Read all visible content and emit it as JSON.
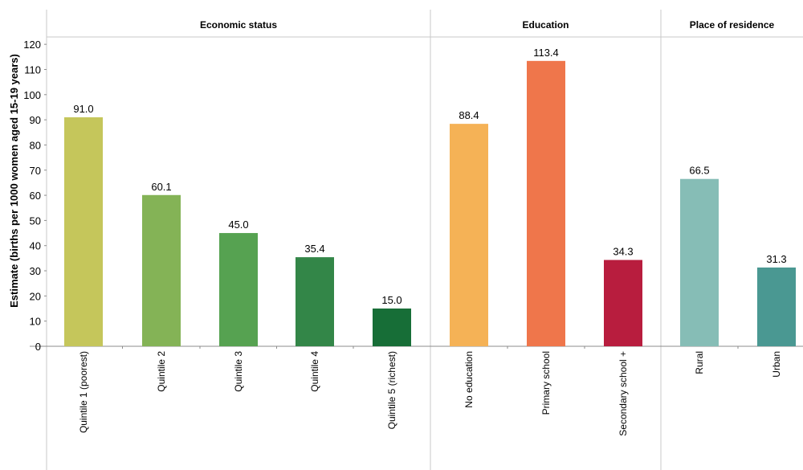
{
  "chart_data": {
    "type": "bar",
    "ylabel": "Estimate (births per 1000 women aged 15-19 years)",
    "ylim": [
      0,
      120
    ],
    "yticks": [
      0,
      10,
      20,
      30,
      40,
      50,
      60,
      70,
      80,
      90,
      100,
      110,
      120
    ],
    "grid": false,
    "groups": [
      {
        "name": "Economic status",
        "bars": [
          {
            "label": "Quintile 1 (poorest)",
            "value": 91.0,
            "value_label": "91.0",
            "color": "#c5c65b"
          },
          {
            "label": "Quintile 2",
            "value": 60.1,
            "value_label": "60.1",
            "color": "#84b356"
          },
          {
            "label": "Quintile 3",
            "value": 45.0,
            "value_label": "45.0",
            "color": "#56a251"
          },
          {
            "label": "Quintile 4",
            "value": 35.4,
            "value_label": "35.4",
            "color": "#338648"
          },
          {
            "label": "Quintile 5 (richest)",
            "value": 15.0,
            "value_label": "15.0",
            "color": "#176e37"
          }
        ]
      },
      {
        "name": "Education",
        "bars": [
          {
            "label": "No education",
            "value": 88.4,
            "value_label": "88.4",
            "color": "#f5b256"
          },
          {
            "label": "Primary school",
            "value": 113.4,
            "value_label": "113.4",
            "color": "#ef764b"
          },
          {
            "label": "Secondary school +",
            "value": 34.3,
            "value_label": "34.3",
            "color": "#b81d3e"
          }
        ]
      },
      {
        "name": "Place of residence",
        "bars": [
          {
            "label": "Rural",
            "value": 66.5,
            "value_label": "66.5",
            "color": "#86bdb6"
          },
          {
            "label": "Urban",
            "value": 31.3,
            "value_label": "31.3",
            "color": "#4a9892"
          }
        ]
      }
    ]
  }
}
